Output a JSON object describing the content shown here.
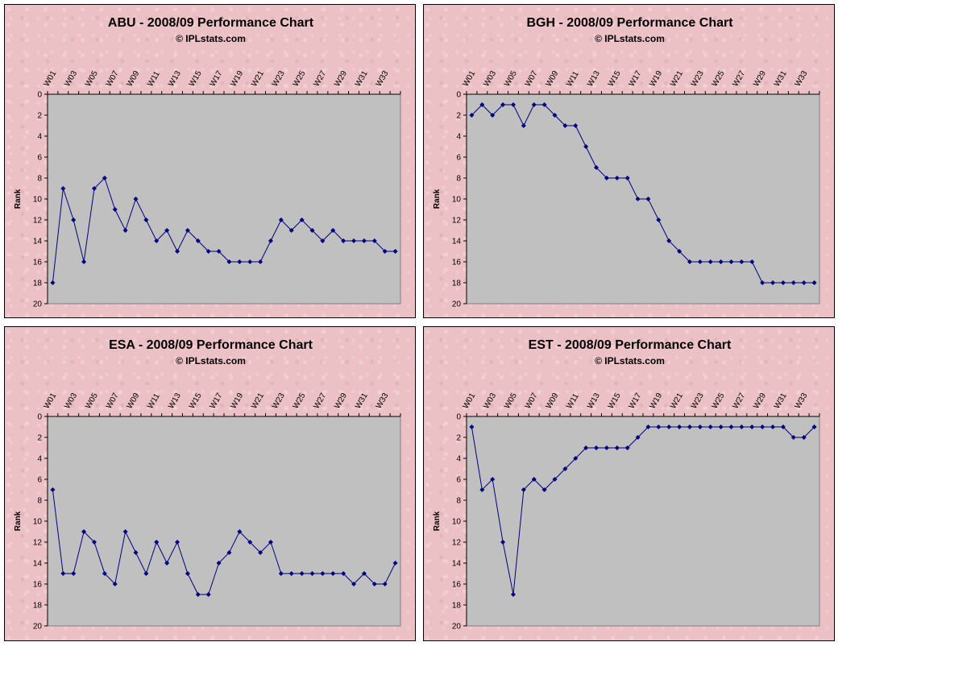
{
  "chart_data": [
    {
      "type": "line",
      "title": "ABU - 2008/09 Performance Chart",
      "subtitle": "© IPLstats.com",
      "ylabel": "Rank",
      "ylim": [
        0,
        20
      ],
      "y_inverted": true,
      "y_ticks": [
        0,
        2,
        4,
        6,
        8,
        10,
        12,
        14,
        16,
        18,
        20
      ],
      "x_tick_labels": [
        "W01",
        "W03",
        "W05",
        "W07",
        "W09",
        "W11",
        "W13",
        "W15",
        "W17",
        "W19",
        "W21",
        "W23",
        "W25",
        "W27",
        "W29",
        "W31",
        "W33"
      ],
      "series": [
        {
          "values": [
            18,
            9,
            12,
            16,
            9,
            8,
            11,
            13,
            10,
            12,
            14,
            13,
            15,
            13,
            14,
            15,
            15,
            16,
            16,
            16,
            16,
            14,
            12,
            13,
            12,
            13,
            14,
            13,
            14,
            14,
            14,
            14,
            15,
            15
          ]
        }
      ],
      "colors": {
        "line": "#000080",
        "plot_bg": "#c0c0c0"
      }
    },
    {
      "type": "line",
      "title": "BGH - 2008/09 Performance Chart",
      "subtitle": "© IPLstats.com",
      "ylabel": "Rank",
      "ylim": [
        0,
        20
      ],
      "y_inverted": true,
      "y_ticks": [
        0,
        2,
        4,
        6,
        8,
        10,
        12,
        14,
        16,
        18,
        20
      ],
      "x_tick_labels": [
        "W01",
        "W03",
        "W05",
        "W07",
        "W09",
        "W11",
        "W13",
        "W15",
        "W17",
        "W19",
        "W21",
        "W23",
        "W25",
        "W27",
        "W29",
        "W31",
        "W33"
      ],
      "series": [
        {
          "values": [
            2,
            1,
            2,
            1,
            1,
            3,
            1,
            1,
            2,
            3,
            3,
            5,
            7,
            8,
            8,
            8,
            10,
            10,
            12,
            14,
            15,
            16,
            16,
            16,
            16,
            16,
            16,
            16,
            18,
            18,
            18,
            18,
            18,
            18
          ]
        }
      ],
      "colors": {
        "line": "#000080",
        "plot_bg": "#c0c0c0"
      }
    },
    {
      "type": "line",
      "title": "ESA - 2008/09 Performance Chart",
      "subtitle": "© IPLstats.com",
      "ylabel": "Rank",
      "ylim": [
        0,
        20
      ],
      "y_inverted": true,
      "y_ticks": [
        0,
        2,
        4,
        6,
        8,
        10,
        12,
        14,
        16,
        18,
        20
      ],
      "x_tick_labels": [
        "W01",
        "W03",
        "W05",
        "W07",
        "W09",
        "W11",
        "W13",
        "W15",
        "W17",
        "W19",
        "W21",
        "W23",
        "W25",
        "W27",
        "W29",
        "W31",
        "W33"
      ],
      "series": [
        {
          "values": [
            7,
            15,
            15,
            11,
            12,
            15,
            16,
            11,
            13,
            15,
            12,
            14,
            12,
            15,
            17,
            17,
            14,
            13,
            11,
            12,
            13,
            12,
            15,
            15,
            15,
            15,
            15,
            15,
            15,
            16,
            15,
            16,
            16,
            14
          ]
        }
      ],
      "colors": {
        "line": "#000080",
        "plot_bg": "#c0c0c0"
      }
    },
    {
      "type": "line",
      "title": "EST - 2008/09 Performance Chart",
      "subtitle": "© IPLstats.com",
      "ylabel": "Rank",
      "ylim": [
        0,
        20
      ],
      "y_inverted": true,
      "y_ticks": [
        0,
        2,
        4,
        6,
        8,
        10,
        12,
        14,
        16,
        18,
        20
      ],
      "x_tick_labels": [
        "W01",
        "W03",
        "W05",
        "W07",
        "W09",
        "W11",
        "W13",
        "W15",
        "W17",
        "W19",
        "W21",
        "W23",
        "W25",
        "W27",
        "W29",
        "W31",
        "W33"
      ],
      "series": [
        {
          "values": [
            1,
            7,
            6,
            12,
            17,
            7,
            6,
            7,
            6,
            5,
            4,
            3,
            3,
            3,
            3,
            3,
            2,
            1,
            1,
            1,
            1,
            1,
            1,
            1,
            1,
            1,
            1,
            1,
            1,
            1,
            1,
            2,
            2,
            1
          ]
        }
      ],
      "colors": {
        "line": "#000080",
        "plot_bg": "#c0c0c0"
      }
    }
  ]
}
